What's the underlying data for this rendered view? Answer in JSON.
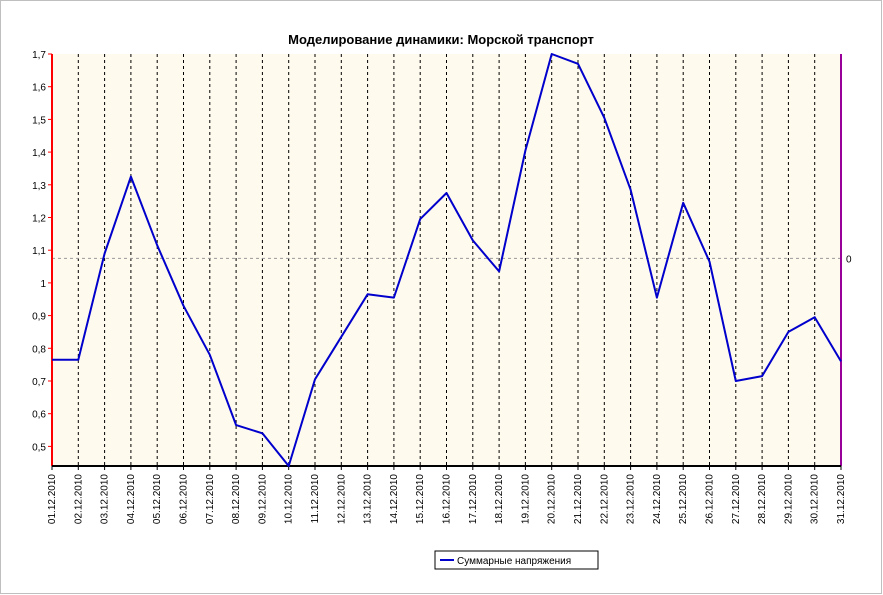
{
  "chart_data": {
    "type": "line",
    "title": "Моделирование динамики: Морской транспорт",
    "xlabel": "",
    "ylabel": "",
    "categories": [
      "01.12.2010",
      "02.12.2010",
      "03.12.2010",
      "04.12.2010",
      "05.12.2010",
      "06.12.2010",
      "07.12.2010",
      "08.12.2010",
      "09.12.2010",
      "10.12.2010",
      "11.12.2010",
      "12.12.2010",
      "13.12.2010",
      "14.12.2010",
      "15.12.2010",
      "16.12.2010",
      "17.12.2010",
      "18.12.2010",
      "19.12.2010",
      "20.12.2010",
      "21.12.2010",
      "22.12.2010",
      "23.12.2010",
      "24.12.2010",
      "25.12.2010",
      "26.12.2010",
      "27.12.2010",
      "28.12.2010",
      "29.12.2010",
      "30.12.2010",
      "31.12.2010"
    ],
    "series": [
      {
        "name": "Суммарные напряжения",
        "color": "#0000cc",
        "values": [
          0.765,
          0.765,
          1.09,
          1.325,
          1.115,
          0.93,
          0.78,
          0.565,
          0.54,
          0.44,
          0.705,
          0.835,
          0.965,
          0.955,
          1.195,
          1.275,
          1.13,
          1.035,
          1.405,
          1.7,
          1.67,
          1.505,
          1.285,
          0.955,
          1.245,
          1.065,
          0.7,
          0.715,
          0.85,
          0.895,
          0.76
        ]
      }
    ],
    "ylim": [
      0.44,
      1.7
    ],
    "yticks": [
      "0,5",
      "0,6",
      "0,7",
      "0,8",
      "0,9",
      "1",
      "1,1",
      "1,2",
      "1,3",
      "1,4",
      "1,5",
      "1,6",
      "1,7"
    ],
    "ytick_values": [
      0.5,
      0.6,
      0.7,
      0.8,
      0.9,
      1.0,
      1.1,
      1.2,
      1.3,
      1.4,
      1.5,
      1.6,
      1.7
    ],
    "right_axis_label": "0",
    "reference_line_value": 1.075,
    "grid": {
      "vertical": true,
      "horizontal": false
    },
    "legend_placement": "bottom-center",
    "colors": {
      "plot_background": "#fffaee",
      "left_axis": "#ff0000",
      "right_axis": "#990099",
      "bottom_axis": "#000000",
      "grid": "#000000",
      "reference_line": "#999999"
    }
  }
}
